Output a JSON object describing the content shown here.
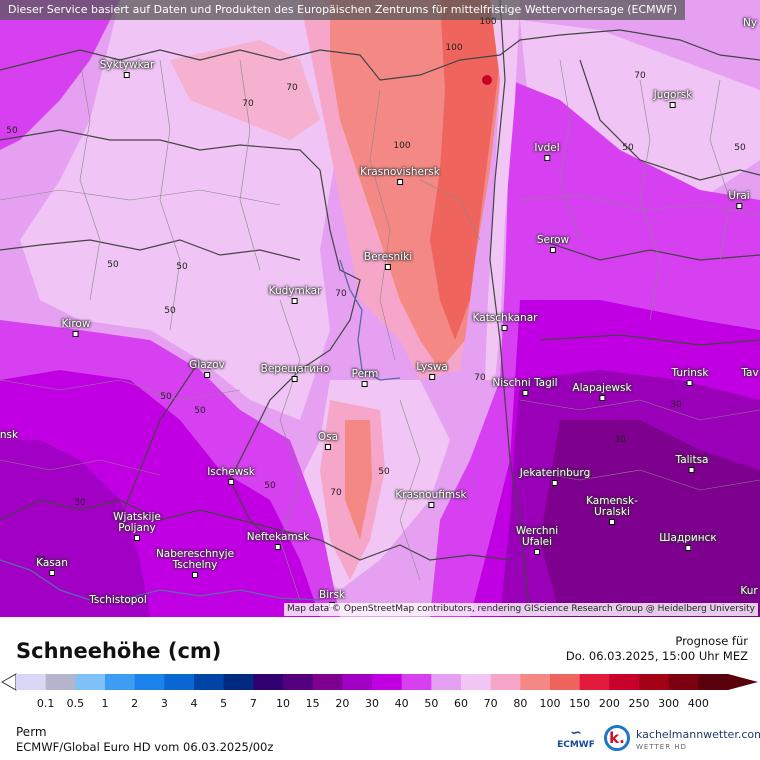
{
  "header": {
    "disclaimer": "Dieser Service basiert auf Daten und Produkten des Europäischen Zentrums für mittelfristige Wettervorhersage (ECMWF)"
  },
  "map": {
    "attribution": "Map data © OpenStreetMap contributors, rendering GIScience Research Group @ Heidelberg University",
    "cities": [
      {
        "name": "Syktywkar"
      },
      {
        "name": "Jugorsk"
      },
      {
        "name": "Ivdel"
      },
      {
        "name": "Urai"
      },
      {
        "name": "Krasnovishersk"
      },
      {
        "name": "Serow"
      },
      {
        "name": "Beresniki"
      },
      {
        "name": "Kudymkar"
      },
      {
        "name": "Katschkanar"
      },
      {
        "name": "Kirow"
      },
      {
        "name": "Glazov"
      },
      {
        "name": "Верещагино"
      },
      {
        "name": "Perm"
      },
      {
        "name": "Lyswa"
      },
      {
        "name": "Nischni Tagil"
      },
      {
        "name": "Alapajewsk"
      },
      {
        "name": "Turinsk"
      },
      {
        "name": "Tav"
      },
      {
        "name": "Osa"
      },
      {
        "name": "Talitsa"
      },
      {
        "name": "Ischewsk"
      },
      {
        "name": "Jekaterinburg"
      },
      {
        "name": "Krasnoufimsk"
      },
      {
        "name": "Kamensk-Uralski"
      },
      {
        "name": "Wjatskije Poljany"
      },
      {
        "name": "Neftekamsk"
      },
      {
        "name": "Werchni Ufalei"
      },
      {
        "name": "Шадринск"
      },
      {
        "name": "Nabereschnyje Tschelny"
      },
      {
        "name": "Kasan"
      },
      {
        "name": "Tschistopol"
      },
      {
        "name": "Birsk"
      },
      {
        "name": "Ny"
      },
      {
        "name": "nsk"
      },
      {
        "name": "Kur"
      }
    ],
    "contour_labels": [
      "100",
      "100",
      "70",
      "70",
      "70",
      "50",
      "100",
      "50",
      "50",
      "50",
      "70",
      "50",
      "50",
      "70",
      "50",
      "70",
      "50",
      "30",
      "30",
      "50",
      "50",
      "30",
      "30"
    ]
  },
  "legend": {
    "title": "Schneehöhe (cm)",
    "forecast_label": "Prognose für",
    "forecast_time": "Do. 06.03.2025, 15:00 Uhr MEZ",
    "place": "Perm",
    "model": "ECMWF/Global Euro HD vom  06.03.2025/00z",
    "ticks": [
      "0.1",
      "0.5",
      "1",
      "2",
      "3",
      "4",
      "5",
      "7",
      "10",
      "15",
      "20",
      "30",
      "40",
      "50",
      "60",
      "70",
      "80",
      "100",
      "150",
      "200",
      "250",
      "300",
      "400"
    ],
    "colors": [
      "#d8d8f6",
      "#b4b4cc",
      "#7fc0f6",
      "#3e9cf2",
      "#1a82ea",
      "#0a66d0",
      "#0044a8",
      "#002a80",
      "#300070",
      "#54007e",
      "#7e008e",
      "#a200c4",
      "#c000e2",
      "#d640f0",
      "#e6a0f2",
      "#f2c6f4",
      "#f6a6c8",
      "#f48884",
      "#f0645e",
      "#e21a3c",
      "#c8002c",
      "#a40016",
      "#7c0010",
      "#5a000c"
    ],
    "logos": {
      "ecmwf": "ECMWF",
      "kachelmann": "kachelmannwetter.com",
      "kachelmann_sub": "WETTER HD"
    }
  }
}
